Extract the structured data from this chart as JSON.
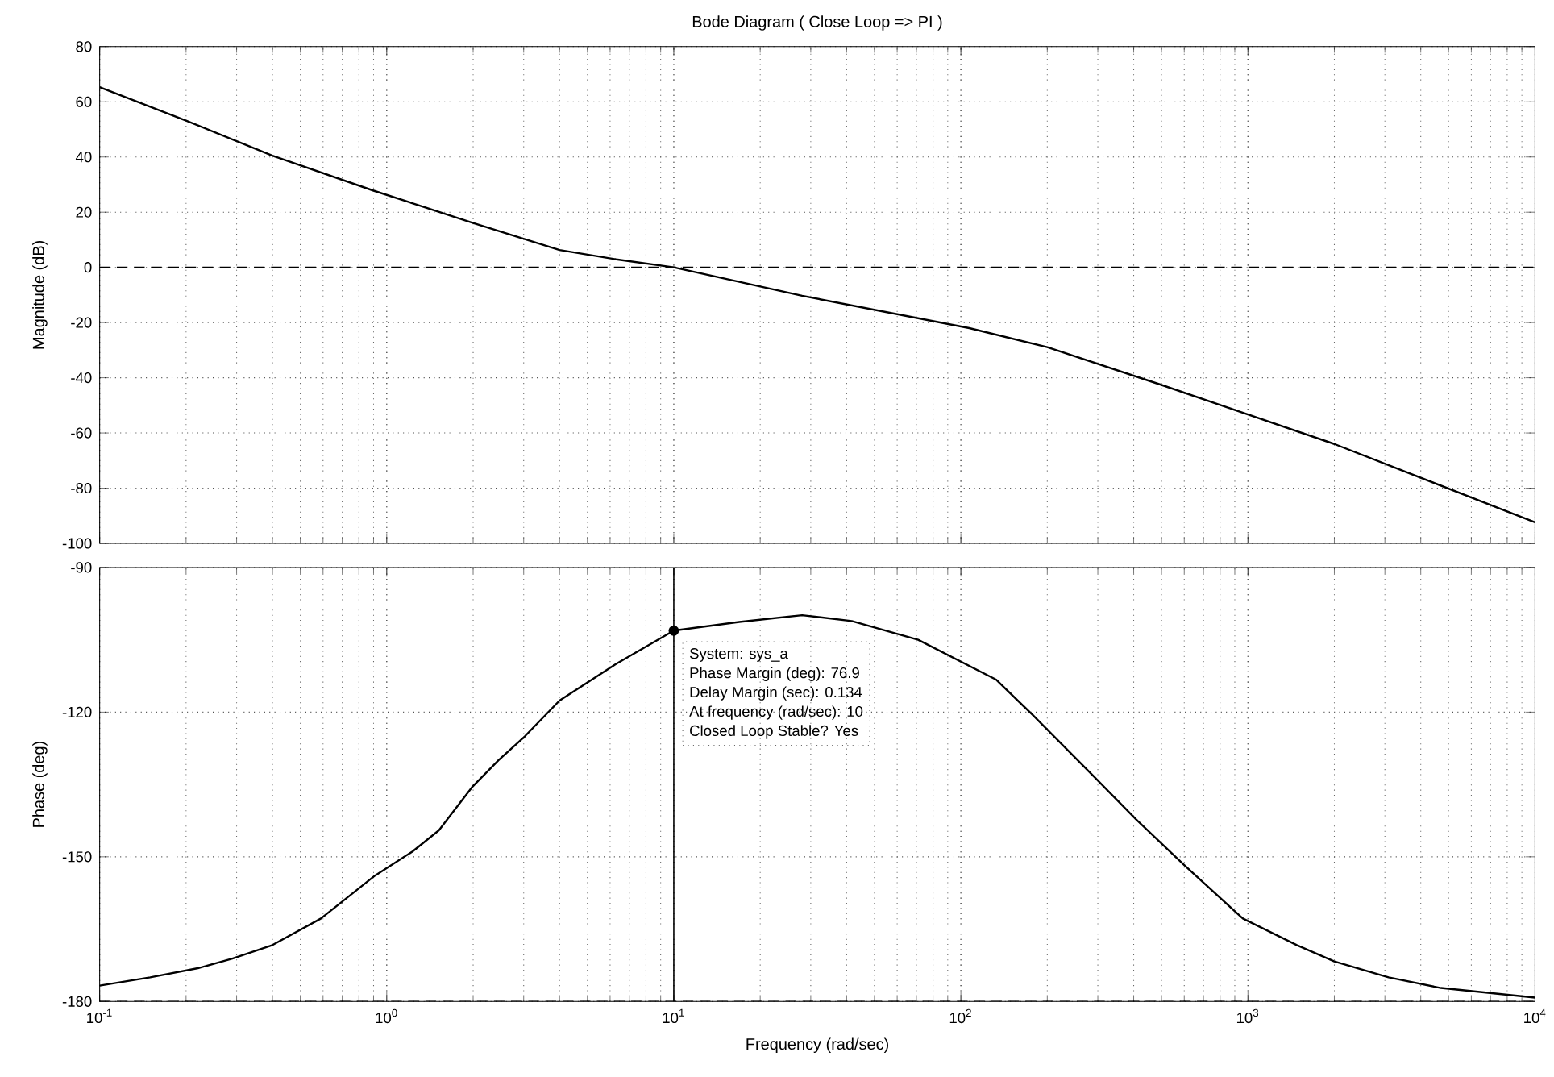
{
  "chart_data": [
    {
      "type": "line",
      "title": "Bode Diagram ( Close Loop => PI )",
      "ylabel": "Magnitude (dB)",
      "x": [
        0.1,
        0.2,
        0.4,
        0.9,
        2,
        4,
        6.3,
        10,
        28,
        107,
        200,
        500,
        2000,
        10000
      ],
      "series": [
        {
          "color": "#000000",
          "values": [
            65.3,
            53.2,
            40.5,
            27.8,
            16.1,
            6.3,
            2.9,
            0,
            -10.3,
            -22,
            -28.9,
            -42.6,
            -64,
            -92.4
          ]
        }
      ],
      "xlim": [
        0.1,
        10000
      ],
      "ylim": [
        -100,
        80
      ],
      "xticks": [
        {
          "value": 0.1,
          "label": null
        },
        {
          "value": 1,
          "label": null
        },
        {
          "value": 10,
          "label": null
        },
        {
          "value": 100,
          "label": null
        },
        {
          "value": 1000,
          "label": null
        },
        {
          "value": 10000,
          "label": null
        }
      ],
      "yticks": [
        -100,
        -80,
        -60,
        -40,
        -20,
        0,
        20,
        40,
        60,
        80
      ],
      "log": "x",
      "grid": true,
      "tick_labels": "y",
      "ref_lines": [
        {
          "axis": "y",
          "value": 0,
          "line_style": "dashed"
        }
      ]
    },
    {
      "type": "line",
      "xlabel": "Frequency  (rad/sec)",
      "ylabel": "Phase (deg)",
      "x": [
        0.1,
        0.15,
        0.22,
        0.29,
        0.4,
        0.59,
        0.91,
        1.23,
        1.52,
        1.98,
        2.45,
        3.03,
        4,
        6.3,
        10,
        16.9,
        28,
        41.7,
        71,
        133,
        178,
        290,
        407,
        600,
        960,
        1480,
        2000,
        3090,
        4700,
        10000
      ],
      "series": [
        {
          "color": "#000000",
          "values": [
            -176.7,
            -175,
            -173.1,
            -171.1,
            -168.3,
            -162.8,
            -153.9,
            -148.9,
            -144.5,
            -135.6,
            -130,
            -125,
            -117.6,
            -110,
            -103.1,
            -101.3,
            -99.9,
            -101.1,
            -105,
            -113.3,
            -120.6,
            -133.3,
            -142.2,
            -151.7,
            -162.8,
            -168.3,
            -171.7,
            -175,
            -177.2,
            -179.2
          ]
        }
      ],
      "xlim": [
        0.1,
        10000
      ],
      "ylim": [
        -180,
        -90
      ],
      "xticks": [
        {
          "value": 0.1,
          "label": "10$^{-1}$"
        },
        {
          "value": 1,
          "label": "10$^{0}$"
        },
        {
          "value": 10,
          "label": "10$^{1}$"
        },
        {
          "value": 100,
          "label": "10$^{2}$"
        },
        {
          "value": 1000,
          "label": "10$^{3}$"
        },
        {
          "value": 10000,
          "label": "10$^{4}$"
        }
      ],
      "yticks": [
        -180,
        -150,
        -120,
        -90
      ],
      "log": "x",
      "grid": true,
      "ref_lines": [
        {
          "axis": "y",
          "value": -180,
          "line_style": "dashed"
        },
        {
          "axis": "x",
          "value": 10,
          "line_style": "solid"
        }
      ],
      "annotations": [
        {
          "text": "System: sys_a",
          "x": 10,
          "y": -103.1
        },
        "Phase Margin (deg): 76.9",
        "Delay Margin (sec): 0.134",
        "At frequency (rad/sec): 10",
        "Closed Loop Stable? Yes"
      ]
    }
  ]
}
